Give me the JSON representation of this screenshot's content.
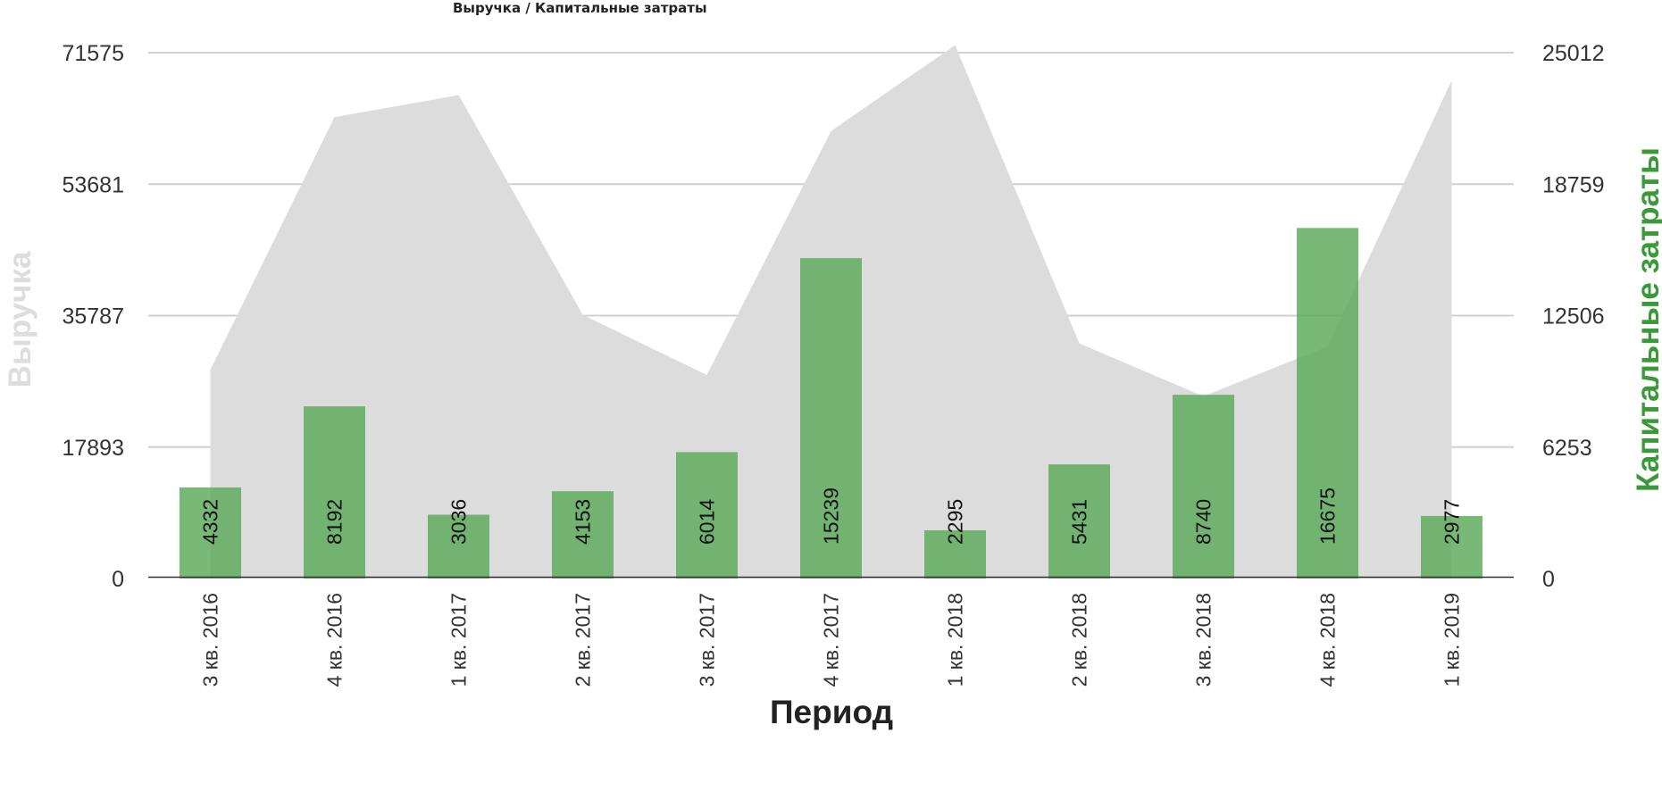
{
  "chart_data": {
    "type": "bar",
    "title": "Выручка / Капитальные затраты",
    "xlabel": "Период",
    "ylabel_left": "Выручка",
    "ylabel_right": "Капитальные затраты",
    "categories": [
      "3 кв. 2016",
      "4 кв. 2016",
      "1 кв. 2017",
      "2 кв. 2017",
      "3 кв. 2017",
      "4 кв. 2017",
      "1 кв. 2018",
      "2 кв. 2018",
      "3 кв. 2018",
      "4 кв. 2018",
      "1 кв. 2019"
    ],
    "left_axis": {
      "ticks": [
        "0",
        "17893",
        "35787",
        "53681",
        "71575"
      ],
      "range": [
        0,
        71575
      ]
    },
    "right_axis": {
      "ticks": [
        "0",
        "6253",
        "12506",
        "18759",
        "25012"
      ],
      "range": [
        0,
        25012
      ]
    },
    "grid": true,
    "series": [
      {
        "name": "Выручка",
        "kind": "area",
        "axis": "left",
        "color": "#dcdcdc",
        "values": [
          28400,
          62800,
          65800,
          35900,
          27700,
          60900,
          72600,
          32000,
          24800,
          31600,
          67800
        ]
      },
      {
        "name": "Капитальные затраты",
        "kind": "bar",
        "axis": "right",
        "color": "#5aaa5a",
        "values": [
          4332,
          8192,
          3036,
          4153,
          6014,
          15239,
          2295,
          5431,
          8740,
          16675,
          2977
        ],
        "labels": [
          "4332",
          "8192",
          "3036",
          "4153",
          "6014",
          "15239",
          "2295",
          "5431",
          "8740",
          "16675",
          "2977"
        ]
      }
    ]
  }
}
